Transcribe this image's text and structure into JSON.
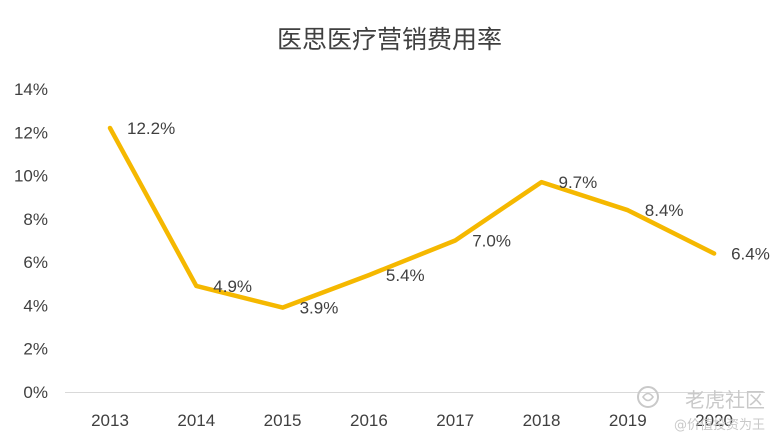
{
  "chart_data": {
    "type": "line",
    "title": "医思医疗营销费用率",
    "categories": [
      "2013",
      "2014",
      "2015",
      "2016",
      "2017",
      "2018",
      "2019",
      "2020"
    ],
    "series": [
      {
        "values": [
          12.2,
          4.9,
          3.9,
          5.4,
          7.0,
          9.7,
          8.4,
          6.4
        ],
        "labels": [
          "12.2%",
          "4.9%",
          "3.9%",
          "5.4%",
          "7.0%",
          "9.7%",
          "8.4%",
          "6.4%"
        ]
      }
    ],
    "yticks": [
      "0%",
      "2%",
      "4%",
      "6%",
      "8%",
      "10%",
      "12%",
      "14%"
    ],
    "ylim": [
      0,
      14
    ],
    "grid": false,
    "line_color": "#F5B800"
  },
  "watermark": {
    "line1": "老虎社区",
    "line2": "@价值投资为王",
    "icon": "tiger-logo-icon"
  }
}
